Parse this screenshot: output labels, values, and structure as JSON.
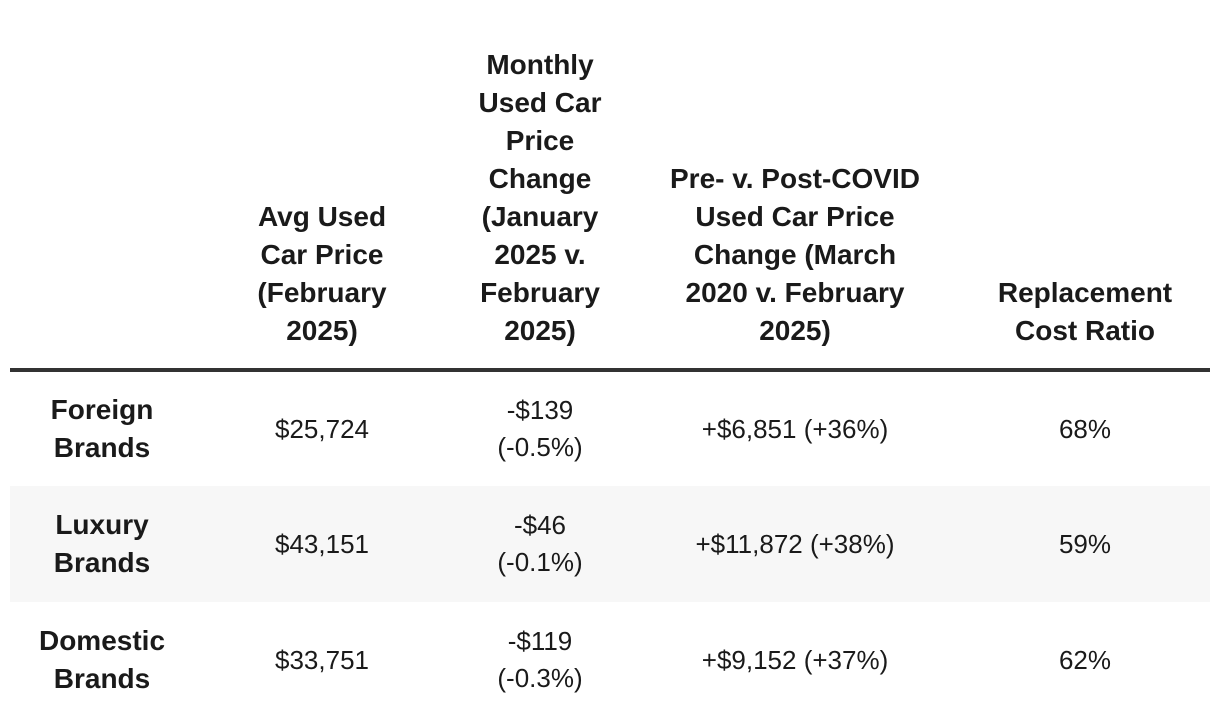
{
  "table": {
    "headers": [
      "",
      "Avg Used Car Price (February 2025)",
      "Monthly Used Car Price Change (January 2025 v. February 2025)",
      "Pre- v. Post-COVID Used Car Price Change (March 2020 v. February 2025)",
      "Replacement Cost Ratio"
    ],
    "rows": [
      {
        "brand": "Foreign Brands",
        "avg_price": "$25,724",
        "monthly_change": "-$139 (-0.5%)",
        "covid_change": "+$6,851 (+36%)",
        "replacement_ratio": "68%"
      },
      {
        "brand": "Luxury Brands",
        "avg_price": "$43,151",
        "monthly_change": "-$46 (-0.1%)",
        "covid_change": "+$11,872 (+38%)",
        "replacement_ratio": "59%"
      },
      {
        "brand": "Domestic Brands",
        "avg_price": "$33,751",
        "monthly_change": "-$119 (-0.3%)",
        "covid_change": "+$9,152 (+37%)",
        "replacement_ratio": "62%"
      }
    ]
  },
  "colors": {
    "header_rule": "#333333",
    "shaded_row": "#f7f7f7",
    "text": "#1a1a1a"
  }
}
